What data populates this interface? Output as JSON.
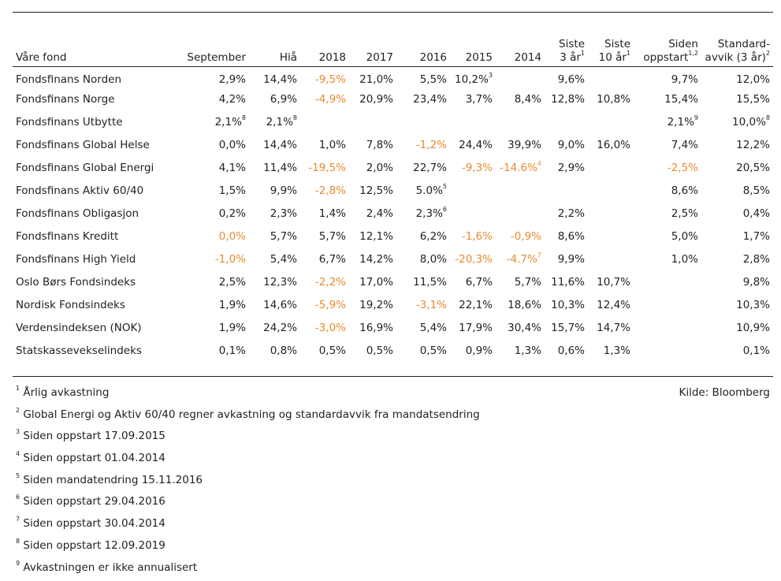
{
  "table": {
    "headers": [
      {
        "lines": [
          "Våre fond"
        ],
        "sup": ""
      },
      {
        "lines": [
          "September"
        ],
        "sup": ""
      },
      {
        "lines": [
          "Hiå"
        ],
        "sup": ""
      },
      {
        "lines": [
          "2018"
        ],
        "sup": ""
      },
      {
        "lines": [
          "2017"
        ],
        "sup": ""
      },
      {
        "lines": [
          "2016"
        ],
        "sup": ""
      },
      {
        "lines": [
          "2015"
        ],
        "sup": ""
      },
      {
        "lines": [
          "2014"
        ],
        "sup": ""
      },
      {
        "lines": [
          "Siste",
          "3 år"
        ],
        "sup": "1"
      },
      {
        "lines": [
          "Siste",
          "10 år"
        ],
        "sup": "1"
      },
      {
        "lines": [
          "Siden",
          "oppstart"
        ],
        "sup": "1,2"
      },
      {
        "lines": [
          "Standard-",
          "avvik (3 år)"
        ],
        "sup": "2"
      }
    ],
    "rows": [
      {
        "name": "Fondsfinans Norden",
        "cells": [
          {
            "v": "2,9%"
          },
          {
            "v": "14,4%"
          },
          {
            "v": "-9,5%",
            "neg": true
          },
          {
            "v": "21,0%"
          },
          {
            "v": "5,5%"
          },
          {
            "v": "10,2%",
            "sup": "3"
          },
          {
            "v": ""
          },
          {
            "v": "9,6%"
          },
          {
            "v": ""
          },
          {
            "v": "9,7%"
          },
          {
            "v": "12,0%"
          }
        ]
      },
      {
        "name": "Fondsfinans Norge",
        "cells": [
          {
            "v": "4,2%"
          },
          {
            "v": "6,9%"
          },
          {
            "v": "-4,9%",
            "neg": true
          },
          {
            "v": "20,9%"
          },
          {
            "v": "23,4%"
          },
          {
            "v": "3,7%"
          },
          {
            "v": "8,4%"
          },
          {
            "v": "12,8%"
          },
          {
            "v": "10,8%"
          },
          {
            "v": "15,4%"
          },
          {
            "v": "15,5%"
          }
        ]
      },
      {
        "name": "Fondsfinans Utbytte",
        "cells": [
          {
            "v": "2,1%",
            "sup": "8"
          },
          {
            "v": "2,1%",
            "sup": "8"
          },
          {
            "v": ""
          },
          {
            "v": ""
          },
          {
            "v": ""
          },
          {
            "v": ""
          },
          {
            "v": ""
          },
          {
            "v": ""
          },
          {
            "v": ""
          },
          {
            "v": "2,1%",
            "sup": "9"
          },
          {
            "v": "10,0%",
            "sup": "8"
          }
        ]
      },
      {
        "name": "Fondsfinans Global Helse",
        "cells": [
          {
            "v": "0,0%"
          },
          {
            "v": "14,4%"
          },
          {
            "v": "1,0%"
          },
          {
            "v": "7,8%"
          },
          {
            "v": "-1,2%",
            "neg": true
          },
          {
            "v": "24,4%"
          },
          {
            "v": "39,9%"
          },
          {
            "v": "9,0%"
          },
          {
            "v": "16,0%"
          },
          {
            "v": "7,4%"
          },
          {
            "v": "12,2%"
          }
        ]
      },
      {
        "name": "Fondsfinans Global Energi",
        "cells": [
          {
            "v": "4,1%"
          },
          {
            "v": "11,4%"
          },
          {
            "v": "-19,5%",
            "neg": true
          },
          {
            "v": "2,0%"
          },
          {
            "v": "22,7%"
          },
          {
            "v": "-9,3%",
            "neg": true
          },
          {
            "v": "-14.6%",
            "sup": "4",
            "neg": true
          },
          {
            "v": "2,9%"
          },
          {
            "v": ""
          },
          {
            "v": "-2,5%",
            "neg": true
          },
          {
            "v": "20,5%"
          }
        ]
      },
      {
        "name": "Fondsfinans Aktiv 60/40",
        "cells": [
          {
            "v": "1,5%"
          },
          {
            "v": "9,9%"
          },
          {
            "v": "-2,8%",
            "neg": true
          },
          {
            "v": "12,5%"
          },
          {
            "v": "5.0%",
            "sup": "5"
          },
          {
            "v": ""
          },
          {
            "v": ""
          },
          {
            "v": ""
          },
          {
            "v": ""
          },
          {
            "v": "8,6%"
          },
          {
            "v": "8,5%"
          }
        ]
      },
      {
        "name": "Fondsfinans Obligasjon",
        "cells": [
          {
            "v": "0,2%"
          },
          {
            "v": "2,3%"
          },
          {
            "v": "1,4%"
          },
          {
            "v": "2,4%"
          },
          {
            "v": "2,3%",
            "sup": "6"
          },
          {
            "v": ""
          },
          {
            "v": ""
          },
          {
            "v": "2,2%"
          },
          {
            "v": ""
          },
          {
            "v": "2,5%"
          },
          {
            "v": "0,4%"
          }
        ]
      },
      {
        "name": "Fondsfinans Kreditt",
        "cells": [
          {
            "v": "0,0%",
            "neg": true
          },
          {
            "v": "5,7%"
          },
          {
            "v": "5,7%"
          },
          {
            "v": "12,1%"
          },
          {
            "v": "6,2%"
          },
          {
            "v": "-1,6%",
            "neg": true
          },
          {
            "v": "-0,9%",
            "neg": true
          },
          {
            "v": "8,6%"
          },
          {
            "v": ""
          },
          {
            "v": "5,0%"
          },
          {
            "v": "1,7%"
          }
        ]
      },
      {
        "name": "Fondsfinans High Yield",
        "cells": [
          {
            "v": "-1,0%",
            "neg": true
          },
          {
            "v": "5,4%"
          },
          {
            "v": "6,7%"
          },
          {
            "v": "14,2%"
          },
          {
            "v": "8,0%"
          },
          {
            "v": "-20,3%",
            "neg": true
          },
          {
            "v": "-4.7%",
            "sup": "7",
            "neg": true
          },
          {
            "v": "9,9%"
          },
          {
            "v": ""
          },
          {
            "v": "1,0%"
          },
          {
            "v": "2,8%"
          }
        ]
      },
      {
        "name": "Oslo Børs Fondsindeks",
        "cells": [
          {
            "v": "2,5%"
          },
          {
            "v": "12,3%"
          },
          {
            "v": "-2,2%",
            "neg": true
          },
          {
            "v": "17,0%"
          },
          {
            "v": "11,5%"
          },
          {
            "v": "6,7%"
          },
          {
            "v": "5,7%"
          },
          {
            "v": "11,6%"
          },
          {
            "v": "10,7%"
          },
          {
            "v": ""
          },
          {
            "v": "9,8%"
          }
        ]
      },
      {
        "name": "Nordisk Fondsindeks",
        "cells": [
          {
            "v": "1,9%"
          },
          {
            "v": "14,6%"
          },
          {
            "v": "-5,9%",
            "neg": true
          },
          {
            "v": "19,2%"
          },
          {
            "v": "-3,1%",
            "neg": true
          },
          {
            "v": "22,1%"
          },
          {
            "v": "18,6%"
          },
          {
            "v": "10,3%"
          },
          {
            "v": "12,4%"
          },
          {
            "v": ""
          },
          {
            "v": "10,3%"
          }
        ]
      },
      {
        "name": "Verdensindeksen (NOK)",
        "cells": [
          {
            "v": "1,9%"
          },
          {
            "v": "24,2%"
          },
          {
            "v": "-3,0%",
            "neg": true
          },
          {
            "v": "16,9%"
          },
          {
            "v": "5,4%"
          },
          {
            "v": "17,9%"
          },
          {
            "v": "30,4%"
          },
          {
            "v": "15,7%"
          },
          {
            "v": "14,7%"
          },
          {
            "v": ""
          },
          {
            "v": "10,9%"
          }
        ]
      },
      {
        "name": "Statskassevekselindeks",
        "cells": [
          {
            "v": "0,1%"
          },
          {
            "v": "0,8%"
          },
          {
            "v": "0,5%"
          },
          {
            "v": "0,5%"
          },
          {
            "v": "0,5%"
          },
          {
            "v": "0,9%"
          },
          {
            "v": "1,3%"
          },
          {
            "v": "0,6%"
          },
          {
            "v": "1,3%"
          },
          {
            "v": ""
          },
          {
            "v": "0,1%"
          }
        ]
      }
    ]
  },
  "source": "Kilde: Bloomberg",
  "notes": [
    {
      "num": "1",
      "text": "Årlig avkastning"
    },
    {
      "num": "2",
      "text": "Global Energi og Aktiv 60/40 regner avkastning og standardavvik fra mandatsendring"
    },
    {
      "num": "3",
      "text": "Siden oppstart 17.09.2015"
    },
    {
      "num": "4",
      "text": "Siden oppstart 01.04.2014"
    },
    {
      "num": "5",
      "text": "Siden mandatendring 15.11.2016"
    },
    {
      "num": "6",
      "text": "Siden oppstart 29.04.2016"
    },
    {
      "num": "7",
      "text": "Siden oppstart 30.04.2014"
    },
    {
      "num": "8",
      "text": "Siden oppstart 12.09.2019"
    },
    {
      "num": "9",
      "text": "Avkastningen er ikke annualisert"
    }
  ],
  "colors": {
    "negative": "#e88a2e",
    "text": "#222222",
    "rule": "#222222"
  }
}
